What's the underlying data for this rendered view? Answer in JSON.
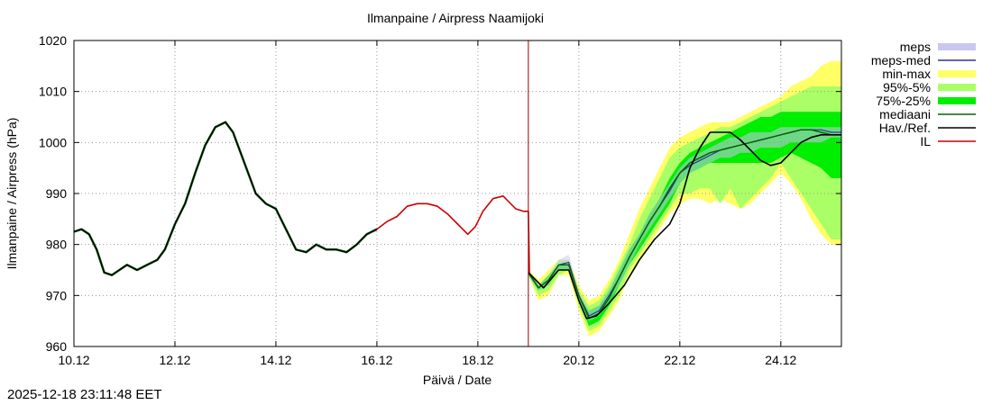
{
  "chart_data": {
    "type": "line",
    "title": "Ilmanpaine / Airpress Naamijoki",
    "xlabel": "Päivä / Date",
    "ylabel": "Ilmanpaine / Airpress (hPa)",
    "xlim": [
      10.0,
      25.2
    ],
    "ylim": [
      960,
      1020
    ],
    "grid": true,
    "legend_position": "right-outside-top",
    "x_ticks": [
      {
        "x": 10,
        "label": "10.12"
      },
      {
        "x": 12,
        "label": "12.12"
      },
      {
        "x": 14,
        "label": "14.12"
      },
      {
        "x": 16,
        "label": "16.12"
      },
      {
        "x": 18,
        "label": "18.12"
      },
      {
        "x": 20,
        "label": "20.12"
      },
      {
        "x": 22,
        "label": "22.12"
      },
      {
        "x": 24,
        "label": "24.12"
      }
    ],
    "y_ticks": [
      {
        "y": 960,
        "label": "960"
      },
      {
        "y": 970,
        "label": "970"
      },
      {
        "y": 980,
        "label": "980"
      },
      {
        "y": 990,
        "label": "990"
      },
      {
        "y": 1000,
        "label": "1000"
      },
      {
        "y": 1010,
        "label": "1010"
      },
      {
        "y": 1020,
        "label": "1020"
      }
    ],
    "forecast_start": 19.0,
    "legend": [
      {
        "label": "meps",
        "kind": "band",
        "color": "#c8c8f0"
      },
      {
        "label": "meps-med",
        "kind": "line",
        "color": "#3030a0"
      },
      {
        "label": "min-max",
        "kind": "band",
        "color": "#ffff66"
      },
      {
        "label": "95%-5%",
        "kind": "band",
        "color": "#aaff66"
      },
      {
        "label": "75%-25%",
        "kind": "band",
        "color": "#00ee00"
      },
      {
        "label": "mediaani",
        "kind": "line",
        "color": "#006600"
      },
      {
        "label": "Hav./Ref.",
        "kind": "line",
        "color": "#000000"
      },
      {
        "label": "IL",
        "kind": "line",
        "color": "#cc0000"
      }
    ],
    "x": [
      19.0,
      19.2,
      19.4,
      19.6,
      19.8,
      20.0,
      20.2,
      20.4,
      20.6,
      20.8,
      21.0,
      21.2,
      21.4,
      21.6,
      21.8,
      22.0,
      22.2,
      22.4,
      22.6,
      22.8,
      23.0,
      23.2,
      23.4,
      23.6,
      23.8,
      24.0,
      24.2,
      24.4,
      24.6,
      24.8,
      25.0,
      25.2
    ],
    "series": [
      {
        "name": "min-max",
        "lower": [
          974,
          969,
          970,
          974,
          974,
          967,
          962,
          963,
          966,
          969,
          974,
          977,
          980,
          983,
          986,
          988,
          989,
          989,
          988,
          989,
          988,
          987,
          988,
          990,
          992,
          994,
          992,
          989,
          985,
          982,
          980,
          980
        ],
        "upper": [
          975,
          973,
          975,
          977,
          977,
          972,
          969,
          970,
          973,
          977,
          982,
          987,
          991,
          995,
          999,
          1001,
          1002,
          1003,
          1004,
          1004,
          1004,
          1005,
          1006,
          1007,
          1008,
          1009,
          1011,
          1012,
          1013,
          1015,
          1016,
          1016
        ]
      },
      {
        "name": "95%-5%",
        "lower": [
          974,
          970,
          971,
          974,
          975,
          968,
          963,
          964,
          967,
          970,
          975,
          978,
          981,
          984,
          987,
          990,
          990,
          991,
          991,
          988,
          991,
          987,
          989,
          991,
          993,
          996,
          993,
          990,
          987,
          984,
          981,
          981
        ],
        "upper": [
          975,
          972,
          974,
          977,
          977,
          971,
          968,
          969,
          972,
          976,
          980,
          985,
          989,
          993,
          997,
          999,
          1000,
          1001,
          1002,
          1003,
          1003,
          1004,
          1005,
          1006,
          1007,
          1008,
          1009,
          1010,
          1011,
          1011,
          1011,
          1011
        ]
      },
      {
        "name": "75%-25%",
        "lower": [
          974,
          971,
          972,
          975,
          975,
          969,
          964,
          965,
          968,
          972,
          976,
          979,
          982,
          985,
          988,
          992,
          994,
          995,
          996,
          996,
          996,
          996,
          996,
          996,
          996,
          997,
          998,
          997,
          996,
          995,
          993,
          993
        ],
        "upper": [
          975,
          972,
          974,
          976,
          976,
          970,
          967,
          968,
          971,
          975,
          979,
          982,
          986,
          989,
          993,
          996,
          998,
          999,
          1000,
          1001,
          1002,
          1003,
          1004,
          1005,
          1005,
          1006,
          1006,
          1006,
          1006,
          1006,
          1006,
          1006
        ]
      },
      {
        "name": "meps",
        "lower": [
          974,
          971,
          972,
          975,
          975,
          969,
          965,
          966,
          969,
          972,
          976,
          980,
          983,
          986,
          989,
          992,
          994,
          995,
          996,
          997,
          997,
          998,
          998,
          999,
          999,
          999,
          1000,
          1000,
          1000,
          1000,
          1001,
          1001
        ],
        "upper": [
          975,
          972,
          974,
          977,
          978,
          971,
          967,
          968,
          971,
          975,
          979,
          982,
          986,
          989,
          992,
          995,
          997,
          998,
          999,
          1000,
          1001,
          1001,
          1002,
          1002,
          1002,
          1003,
          1003,
          1003,
          1003,
          1003,
          1003,
          1003
        ]
      },
      {
        "name": "mediaani",
        "values": [
          974.5,
          971.5,
          973,
          976,
          976,
          970,
          965.5,
          966.5,
          969.5,
          973.5,
          977.5,
          981,
          984.5,
          987.5,
          991,
          994,
          996,
          997,
          998,
          998.5,
          999,
          999.5,
          1000,
          1000.5,
          1001,
          1001.5,
          1002,
          1002.5,
          1002.5,
          1002,
          1001.5,
          1001.5
        ]
      },
      {
        "name": "meps-med",
        "values": [
          974.5,
          971.5,
          973,
          976,
          976.5,
          970,
          966,
          967,
          970,
          973.5,
          977.5,
          981,
          984.5,
          987.5,
          990.5,
          994,
          995.5,
          996.5,
          997.5,
          998.5,
          999,
          999.5,
          1000,
          1000.5,
          1001,
          1001.5,
          1002,
          1002.5,
          1002.5,
          1002.5,
          1002,
          1002
        ]
      }
    ],
    "observed": {
      "name": "Hav./Ref.",
      "x": [
        10.0,
        10.15,
        10.3,
        10.45,
        10.6,
        10.75,
        10.9,
        11.05,
        11.25,
        11.45,
        11.65,
        11.8,
        12.0,
        12.2,
        12.4,
        12.6,
        12.8,
        13.0,
        13.15,
        13.3,
        13.45,
        13.6,
        13.8,
        14.0,
        14.2,
        14.4,
        14.6,
        14.8,
        15.0,
        15.2,
        15.4,
        15.6,
        15.8,
        16.0
      ],
      "y": [
        982.5,
        983,
        982,
        979,
        974.5,
        974,
        975,
        976,
        975,
        976,
        977,
        979,
        984,
        988,
        994,
        999.5,
        1003,
        1004,
        1002,
        998,
        994,
        990,
        988,
        987,
        983,
        979,
        978.5,
        980,
        979,
        979,
        978.5,
        980,
        982,
        983
      ]
    },
    "observed_forecast": {
      "name": "Hav./Ref.",
      "x": [
        19.0,
        19.3,
        19.6,
        19.8,
        20.0,
        20.15,
        20.35,
        20.6,
        20.9,
        21.2,
        21.5,
        21.8,
        22.0,
        22.2,
        22.4,
        22.6,
        22.8,
        23.0,
        23.2,
        23.4,
        23.6,
        23.8,
        24.0,
        24.2,
        24.4,
        24.6,
        24.8,
        25.0,
        25.2
      ],
      "y": [
        974.5,
        971.5,
        975,
        975,
        969,
        965.5,
        966,
        968.5,
        972,
        977,
        981,
        984,
        988,
        995,
        999,
        1002,
        1002,
        1002,
        1000.5,
        998.5,
        996.5,
        995.5,
        996,
        998,
        1000,
        1001,
        1001.5,
        1001.5,
        1001.5
      ]
    },
    "il": {
      "name": "IL",
      "x": [
        16.0,
        16.2,
        16.4,
        16.6,
        16.8,
        17.0,
        17.2,
        17.4,
        17.6,
        17.8,
        17.95,
        18.1,
        18.3,
        18.5,
        18.6,
        18.75,
        18.9,
        19.0,
        19.02
      ],
      "y": [
        983,
        984.5,
        985.5,
        987.5,
        988,
        988,
        987.5,
        986,
        984,
        982,
        983.5,
        986.5,
        989,
        989.5,
        988.5,
        987,
        986.5,
        986.5,
        974.5
      ]
    }
  },
  "footer": {
    "timestamp": "2025-12-18 23:11:48 EET"
  }
}
